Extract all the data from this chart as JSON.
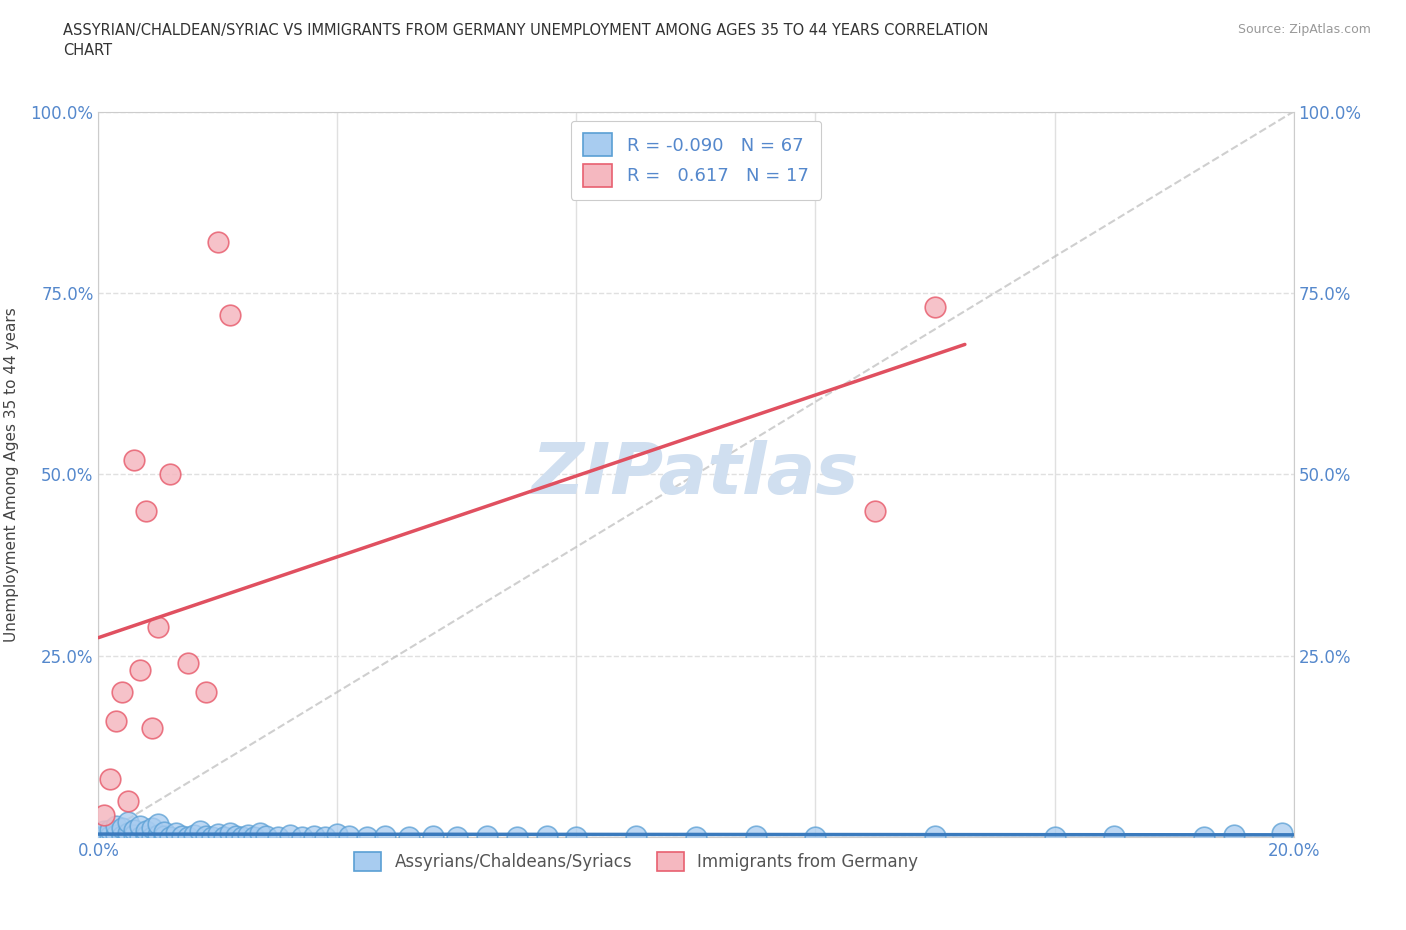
{
  "title": "ASSYRIAN/CHALDEAN/SYRIAC VS IMMIGRANTS FROM GERMANY UNEMPLOYMENT AMONG AGES 35 TO 44 YEARS CORRELATION\nCHART",
  "source": "Source: ZipAtlas.com",
  "ylabel": "Unemployment Among Ages 35 to 44 years",
  "xlim": [
    0.0,
    0.2
  ],
  "ylim": [
    0.0,
    1.0
  ],
  "blue_R": -0.09,
  "blue_N": 67,
  "pink_R": 0.617,
  "pink_N": 17,
  "blue_color": "#A8CCF0",
  "pink_color": "#F5B8C0",
  "blue_edge_color": "#5A9FD4",
  "pink_edge_color": "#E86070",
  "blue_line_color": "#3A7ABD",
  "pink_line_color": "#E05060",
  "diag_line_color": "#BBBBBB",
  "grid_color": "#E0E0E0",
  "tick_color": "#5588CC",
  "ylabel_color": "#444444",
  "watermark_color": "#D0DFF0",
  "blue_scatter_x": [
    0.0,
    0.001,
    0.001,
    0.002,
    0.002,
    0.003,
    0.003,
    0.004,
    0.004,
    0.005,
    0.005,
    0.005,
    0.006,
    0.006,
    0.007,
    0.007,
    0.008,
    0.008,
    0.009,
    0.009,
    0.01,
    0.01,
    0.011,
    0.011,
    0.012,
    0.013,
    0.014,
    0.015,
    0.016,
    0.017,
    0.018,
    0.019,
    0.02,
    0.021,
    0.022,
    0.023,
    0.024,
    0.025,
    0.026,
    0.027,
    0.028,
    0.03,
    0.032,
    0.034,
    0.036,
    0.038,
    0.04,
    0.042,
    0.045,
    0.048,
    0.052,
    0.056,
    0.06,
    0.065,
    0.07,
    0.075,
    0.08,
    0.09,
    0.1,
    0.11,
    0.12,
    0.14,
    0.16,
    0.17,
    0.185,
    0.19,
    0.198
  ],
  "blue_scatter_y": [
    0.0,
    0.002,
    0.008,
    0.001,
    0.01,
    0.003,
    0.015,
    0.002,
    0.012,
    0.0,
    0.005,
    0.02,
    0.003,
    0.01,
    0.0,
    0.015,
    0.002,
    0.008,
    0.0,
    0.012,
    0.003,
    0.018,
    0.001,
    0.007,
    0.0,
    0.005,
    0.002,
    0.0,
    0.003,
    0.008,
    0.001,
    0.0,
    0.004,
    0.0,
    0.006,
    0.001,
    0.0,
    0.003,
    0.0,
    0.005,
    0.002,
    0.0,
    0.003,
    0.0,
    0.002,
    0.0,
    0.004,
    0.001,
    0.0,
    0.002,
    0.0,
    0.001,
    0.0,
    0.002,
    0.0,
    0.001,
    0.0,
    0.002,
    0.0,
    0.001,
    0.0,
    0.002,
    0.0,
    0.001,
    0.0,
    0.003,
    0.005
  ],
  "pink_scatter_x": [
    0.001,
    0.002,
    0.003,
    0.004,
    0.005,
    0.006,
    0.007,
    0.008,
    0.009,
    0.01,
    0.012,
    0.015,
    0.018,
    0.02,
    0.022,
    0.13,
    0.14
  ],
  "pink_scatter_y": [
    0.03,
    0.08,
    0.16,
    0.2,
    0.05,
    0.52,
    0.23,
    0.45,
    0.15,
    0.29,
    0.5,
    0.24,
    0.2,
    0.82,
    0.72,
    0.45,
    0.73
  ],
  "pink_line_x0": 0.0,
  "pink_line_x1": 0.145,
  "blue_line_slope": -0.005,
  "blue_line_intercept": 0.004
}
